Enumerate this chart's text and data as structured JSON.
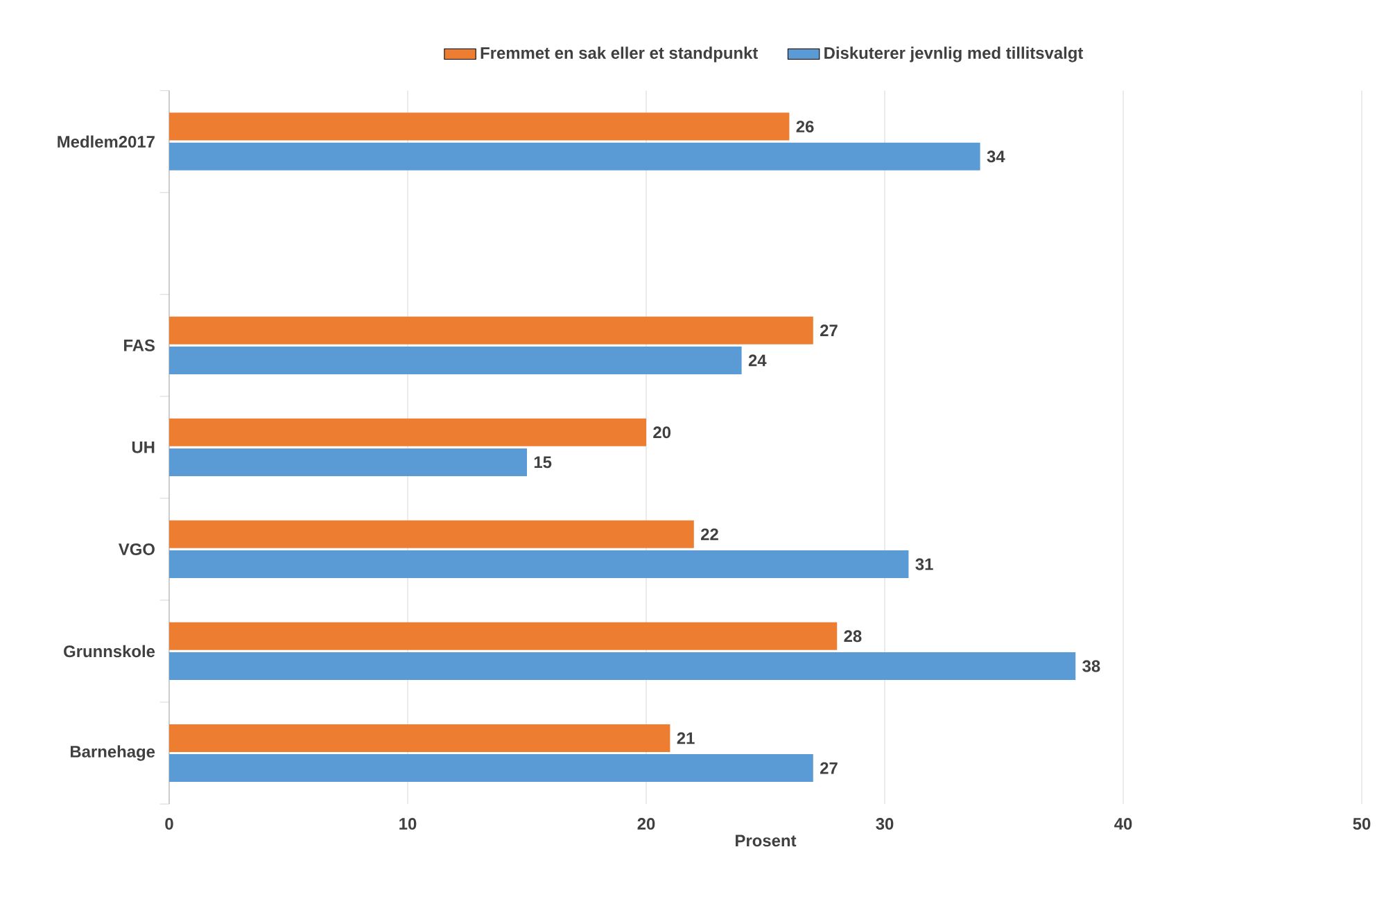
{
  "chart_data": {
    "type": "bar",
    "orientation": "horizontal",
    "xlabel": "Prosent",
    "categories": [
      "Medlem2017",
      null,
      "FAS",
      "UH",
      "VGO",
      "Grunnskole",
      "Barnehage"
    ],
    "series": [
      {
        "name": "Fremmet en sak eller et standpunkt",
        "color": "#ed7d31",
        "values": [
          26,
          null,
          27,
          20,
          22,
          28,
          21
        ]
      },
      {
        "name": "Diskuterer jevnlig med tillitsvalgt",
        "color": "#5b9bd5",
        "values": [
          34,
          null,
          24,
          15,
          31,
          38,
          27
        ]
      }
    ],
    "xlim": [
      0,
      50
    ],
    "xticks": [
      0,
      10,
      20,
      30,
      40,
      50
    ],
    "grid": "x",
    "legend": "top",
    "data_labels": true
  }
}
